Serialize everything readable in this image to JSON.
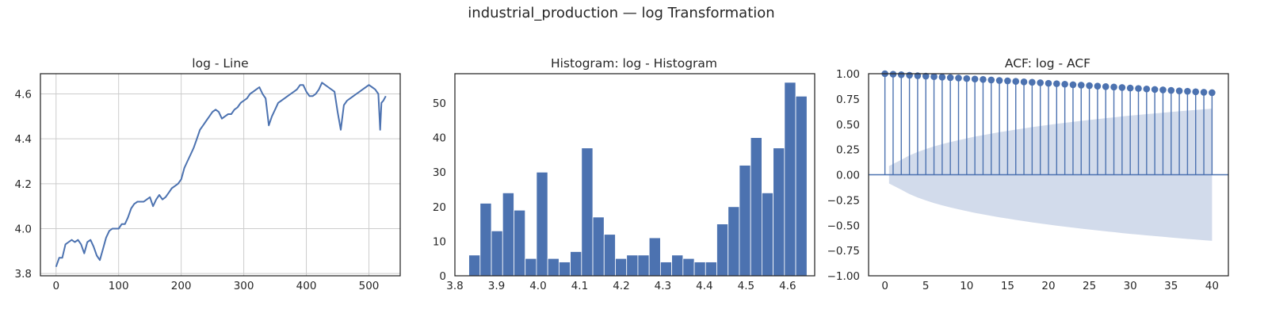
{
  "figure": {
    "suptitle": "industrial_production — log Transformation"
  },
  "colors": {
    "series": "#4c72b0",
    "confband": "#d2dbeb",
    "grid": "#cccccc",
    "frame": "#262626"
  },
  "chart_data": [
    {
      "type": "line",
      "title": "log - Line",
      "grid": true,
      "xlim": [
        -25,
        550
      ],
      "ylim": [
        3.79,
        4.69
      ],
      "xticks": [
        0,
        100,
        200,
        300,
        400,
        500
      ],
      "yticks": [
        3.8,
        4.0,
        4.2,
        4.4,
        4.6
      ],
      "ytick_labels": [
        "3.8",
        "4.0",
        "4.2",
        "4.4",
        "4.6"
      ],
      "x": [
        0,
        5,
        10,
        15,
        20,
        25,
        30,
        35,
        40,
        45,
        50,
        55,
        60,
        65,
        70,
        75,
        80,
        85,
        90,
        95,
        100,
        105,
        110,
        115,
        120,
        125,
        130,
        135,
        140,
        145,
        150,
        155,
        160,
        165,
        170,
        175,
        180,
        185,
        190,
        195,
        200,
        205,
        210,
        215,
        220,
        225,
        230,
        235,
        240,
        245,
        250,
        255,
        260,
        265,
        270,
        275,
        280,
        285,
        290,
        295,
        300,
        305,
        310,
        315,
        320,
        325,
        330,
        335,
        340,
        345,
        350,
        355,
        360,
        365,
        370,
        375,
        380,
        385,
        390,
        395,
        400,
        405,
        410,
        415,
        420,
        425,
        430,
        435,
        440,
        445,
        450,
        455,
        460,
        465,
        470,
        475,
        480,
        485,
        490,
        495,
        500,
        505,
        510,
        515,
        518,
        520,
        523,
        527
      ],
      "y": [
        3.83,
        3.87,
        3.87,
        3.93,
        3.94,
        3.95,
        3.94,
        3.95,
        3.93,
        3.89,
        3.94,
        3.95,
        3.92,
        3.88,
        3.86,
        3.91,
        3.96,
        3.99,
        4.0,
        4.0,
        4.0,
        4.02,
        4.02,
        4.05,
        4.09,
        4.11,
        4.12,
        4.12,
        4.12,
        4.13,
        4.14,
        4.1,
        4.13,
        4.15,
        4.13,
        4.14,
        4.16,
        4.18,
        4.19,
        4.2,
        4.22,
        4.27,
        4.3,
        4.33,
        4.36,
        4.4,
        4.44,
        4.46,
        4.48,
        4.5,
        4.52,
        4.53,
        4.52,
        4.49,
        4.5,
        4.51,
        4.51,
        4.53,
        4.54,
        4.56,
        4.57,
        4.58,
        4.6,
        4.61,
        4.62,
        4.63,
        4.6,
        4.58,
        4.46,
        4.5,
        4.53,
        4.56,
        4.57,
        4.58,
        4.59,
        4.6,
        4.61,
        4.62,
        4.64,
        4.64,
        4.61,
        4.59,
        4.59,
        4.6,
        4.62,
        4.65,
        4.64,
        4.63,
        4.62,
        4.61,
        4.52,
        4.44,
        4.55,
        4.57,
        4.58,
        4.59,
        4.6,
        4.61,
        4.62,
        4.63,
        4.64,
        4.63,
        4.62,
        4.6,
        4.44,
        4.56,
        4.57,
        4.59
      ]
    },
    {
      "type": "bar",
      "title": "Histogram: log - Histogram",
      "grid": false,
      "xlim": [
        3.8,
        4.665
      ],
      "ylim": [
        0,
        58.5
      ],
      "xticks": [
        3.8,
        3.9,
        4.0,
        4.1,
        4.2,
        4.3,
        4.4,
        4.5,
        4.6
      ],
      "xtick_labels": [
        "3.8",
        "3.9",
        "4.0",
        "4.1",
        "4.2",
        "4.3",
        "4.4",
        "4.5",
        "4.6"
      ],
      "yticks": [
        0,
        10,
        20,
        30,
        40,
        50
      ],
      "bin_start": 3.8335,
      "bin_width": 0.0271,
      "values": [
        6,
        21,
        13,
        24,
        19,
        5,
        30,
        5,
        4,
        7,
        37,
        17,
        12,
        5,
        6,
        6,
        11,
        4,
        6,
        5,
        4,
        4,
        15,
        20,
        32,
        40,
        24,
        37,
        56,
        52
      ]
    },
    {
      "type": "scatter",
      "title": "ACF: log - ACF",
      "grid": false,
      "xlim": [
        -2,
        42
      ],
      "ylim": [
        -1.0,
        1.0
      ],
      "xticks": [
        0,
        5,
        10,
        15,
        20,
        25,
        30,
        35,
        40
      ],
      "yticks": [
        -1.0,
        -0.75,
        -0.5,
        -0.25,
        0.0,
        0.25,
        0.5,
        0.75,
        1.0
      ],
      "ytick_labels": [
        "−1.00",
        "−0.75",
        "−0.50",
        "−0.25",
        "0.00",
        "0.25",
        "0.50",
        "0.75",
        "1.00"
      ],
      "lags": [
        0,
        1,
        2,
        3,
        4,
        5,
        6,
        7,
        8,
        9,
        10,
        11,
        12,
        13,
        14,
        15,
        16,
        17,
        18,
        19,
        20,
        21,
        22,
        23,
        24,
        25,
        26,
        27,
        28,
        29,
        30,
        31,
        32,
        33,
        34,
        35,
        36,
        37,
        38,
        39,
        40
      ],
      "acf": [
        1.0,
        0.995,
        0.99,
        0.985,
        0.98,
        0.976,
        0.971,
        0.966,
        0.961,
        0.957,
        0.952,
        0.947,
        0.943,
        0.938,
        0.933,
        0.929,
        0.924,
        0.919,
        0.915,
        0.91,
        0.905,
        0.901,
        0.896,
        0.891,
        0.887,
        0.882,
        0.877,
        0.872,
        0.868,
        0.863,
        0.858,
        0.854,
        0.849,
        0.844,
        0.84,
        0.835,
        0.83,
        0.826,
        0.821,
        0.816,
        0.812
      ],
      "conf_band": [
        0,
        0.086,
        0.148,
        0.191,
        0.225,
        0.254,
        0.28,
        0.303,
        0.323,
        0.342,
        0.36,
        0.377,
        0.392,
        0.407,
        0.421,
        0.434,
        0.447,
        0.459,
        0.471,
        0.482,
        0.493,
        0.504,
        0.514,
        0.524,
        0.533,
        0.542,
        0.551,
        0.56,
        0.568,
        0.577,
        0.585,
        0.592,
        0.6,
        0.607,
        0.614,
        0.621,
        0.628,
        0.635,
        0.641,
        0.648,
        0.654
      ]
    }
  ]
}
